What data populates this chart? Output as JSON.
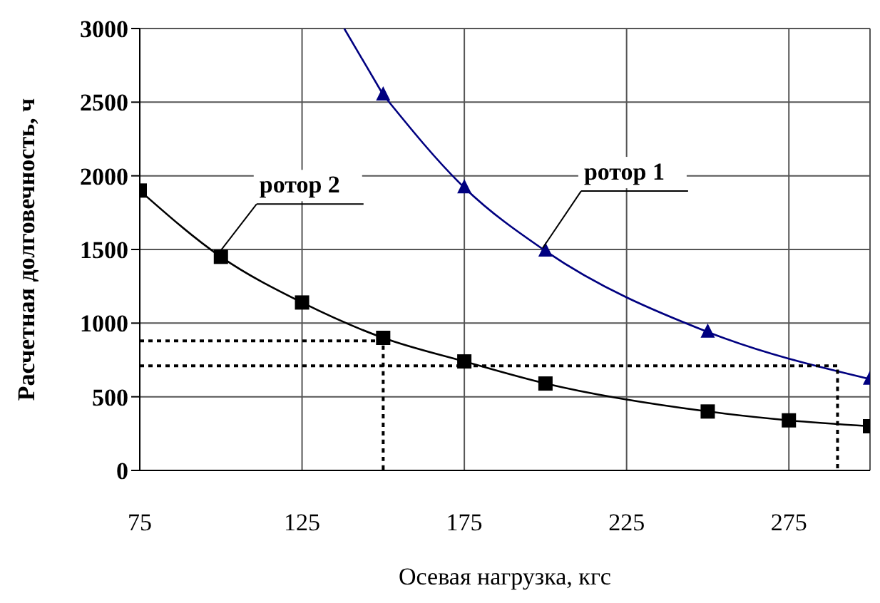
{
  "chart_data": {
    "type": "line",
    "xlabel": "Осевая нагрузка, кгс",
    "ylabel": "Расчетная долговечность, ч",
    "xlim": [
      75,
      300
    ],
    "xticks": [
      75,
      125,
      175,
      225,
      275
    ],
    "ylim": [
      0,
      3000
    ],
    "yticks": [
      0,
      500,
      1000,
      1500,
      2000,
      2500,
      3000
    ],
    "grid": true,
    "series": [
      {
        "name": "ротор 2",
        "color": "#000000",
        "marker": "square",
        "x": [
          75,
          100,
          125,
          150,
          175,
          200,
          250,
          275,
          300
        ],
        "values": [
          1900,
          1450,
          1140,
          900,
          740,
          590,
          400,
          340,
          300
        ]
      },
      {
        "name": "ротор 1",
        "color": "#000080",
        "marker": "triangle",
        "x": [
          150,
          175,
          200,
          250,
          300
        ],
        "values": [
          2550,
          1920,
          1490,
          940,
          620
        ]
      },
      {
        "color": "#000080",
        "marker": "none",
        "x": [
          138,
          150
        ],
        "values": [
          3000,
          2550
        ]
      },
      {
        "color": "#000000",
        "marker": "none",
        "line_style": "dotted",
        "x": [
          75,
          150,
          150
        ],
        "values": [
          880,
          880,
          0
        ]
      },
      {
        "color": "#000000",
        "marker": "none",
        "line_style": "dotted",
        "x": [
          75,
          290,
          290
        ],
        "values": [
          710,
          710,
          0
        ]
      }
    ]
  }
}
